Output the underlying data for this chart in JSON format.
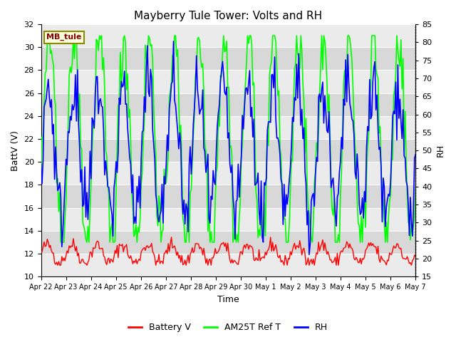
{
  "title": "Mayberry Tule Tower: Volts and RH",
  "xlabel": "Time",
  "ylabel_left": "BattV (V)",
  "ylabel_right": "RH",
  "ylim_left": [
    10,
    32
  ],
  "ylim_right": [
    15,
    85
  ],
  "label_box_text": "MB_tule",
  "legend_labels": [
    "Battery V",
    "AM25T Ref T",
    "RH"
  ],
  "line_colors": [
    "red",
    "lime",
    "blue"
  ],
  "background_color": "#ffffff",
  "plot_bg_color": "#d8d8d8",
  "band_color": "#ebebeb",
  "xtick_labels": [
    "Apr 22",
    "Apr 23",
    "Apr 24",
    "Apr 25",
    "Apr 26",
    "Apr 27",
    "Apr 28",
    "Apr 29",
    "Apr 30",
    "May 1",
    "May 2",
    "May 3",
    "May 4",
    "May 5",
    "May 6",
    "May 7"
  ],
  "num_points": 360
}
